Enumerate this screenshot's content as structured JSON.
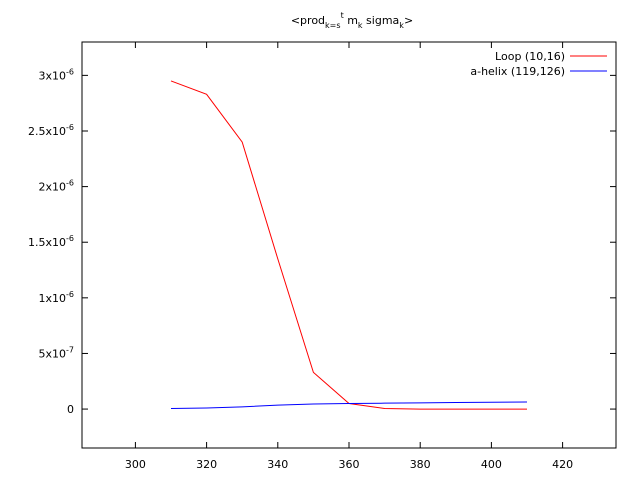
{
  "chart_data": {
    "type": "line",
    "title": {
      "prefix": "<prod",
      "sub1": "k=s",
      "sup1": "t",
      "mid": " m",
      "sub2": "k",
      "mid2": " sigma",
      "sub3": "k",
      "suffix": ">"
    },
    "xlabel": "",
    "ylabel": "",
    "xlim": [
      285,
      435
    ],
    "ylim": [
      -3.5e-07,
      3.3e-06
    ],
    "xticks": [
      "300",
      "320",
      "340",
      "360",
      "380",
      "400",
      "420"
    ],
    "yticks": [
      {
        "value": 0,
        "mantissa": "0",
        "exp": ""
      },
      {
        "value": 5e-07,
        "mantissa": "5x10",
        "exp": "-7"
      },
      {
        "value": 1e-06,
        "mantissa": "1x10",
        "exp": "-6"
      },
      {
        "value": 1.5e-06,
        "mantissa": "1.5x10",
        "exp": "-6"
      },
      {
        "value": 2e-06,
        "mantissa": "2x10",
        "exp": "-6"
      },
      {
        "value": 2.5e-06,
        "mantissa": "2.5x10",
        "exp": "-6"
      },
      {
        "value": 3e-06,
        "mantissa": "3x10",
        "exp": "-6"
      }
    ],
    "grid": false,
    "legend_position": "top-right",
    "series": [
      {
        "name": "Loop (10,16)",
        "color": "#ff0000",
        "x": [
          310,
          320,
          330,
          340,
          350,
          360,
          370,
          380,
          390,
          400,
          410
        ],
        "y": [
          2.95e-06,
          2.83e-06,
          2.4e-06,
          1.35e-06,
          3.3e-07,
          5e-08,
          5e-09,
          0,
          0,
          0,
          0
        ]
      },
      {
        "name": "a-helix (119,126)",
        "color": "#0000ff",
        "x": [
          310,
          320,
          330,
          340,
          350,
          360,
          370,
          380,
          390,
          400,
          410
        ],
        "y": [
          5e-09,
          1e-08,
          2e-08,
          3.5e-08,
          4.5e-08,
          5e-08,
          5.3e-08,
          5.6e-08,
          5.9e-08,
          6.1e-08,
          6.3e-08
        ]
      }
    ]
  }
}
